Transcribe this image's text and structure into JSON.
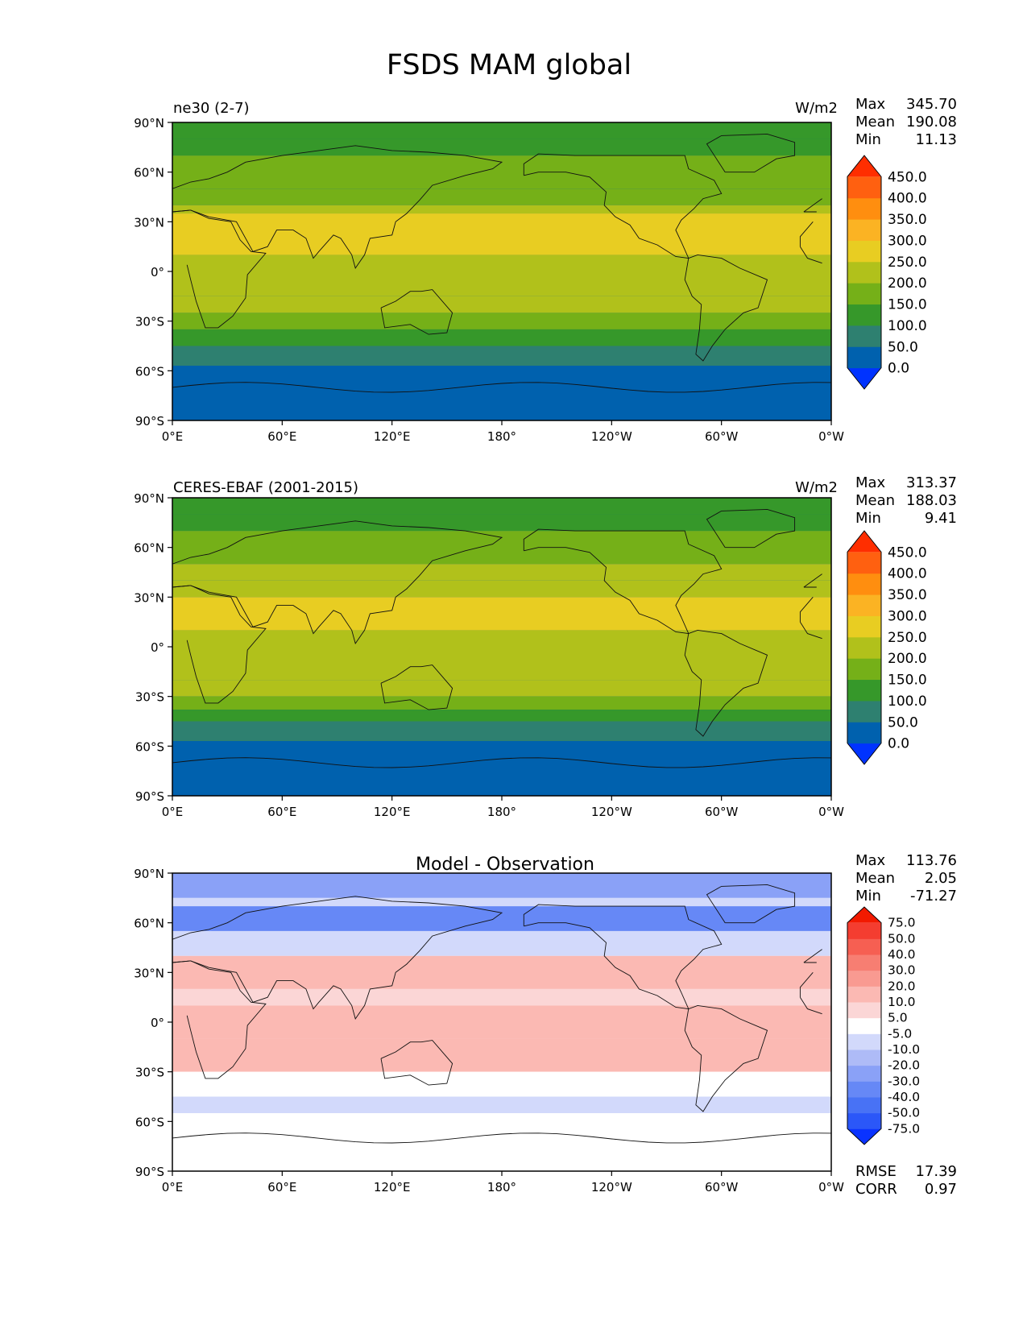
{
  "title": "FSDS MAM global",
  "x_ticks": [
    "0°E",
    "60°E",
    "120°E",
    "180°",
    "120°W",
    "60°W",
    "0°W"
  ],
  "y_ticks": [
    "90°N",
    "60°N",
    "30°N",
    "0°",
    "30°S",
    "60°S",
    "90°S"
  ],
  "stat_labels": {
    "max": "Max",
    "mean": "Mean",
    "min": "Min",
    "rmse": "RMSE",
    "corr": "CORR"
  },
  "chart_data": [
    {
      "type": "heatmap",
      "left_title": "ne30 (2-7)",
      "center_title": "",
      "units": "W/m2",
      "stats": {
        "max": "345.70",
        "mean": "190.08",
        "min": "11.13"
      },
      "xlim": [
        0,
        360
      ],
      "ylim": [
        -90,
        90
      ],
      "colorbar": {
        "levels": [
          "0.0",
          "50.0",
          "100.0",
          "150.0",
          "200.0",
          "250.0",
          "300.0",
          "350.0",
          "400.0",
          "450.0"
        ],
        "colors": [
          "#0033ff",
          "#0061ae",
          "#2e8070",
          "#36982a",
          "#75b018",
          "#b1c11b",
          "#e8cd22",
          "#fbb323",
          "#ff8e0f",
          "#ff6010",
          "#ff2e00"
        ]
      },
      "zonal_mean_bands": [
        {
          "lat_from": 90,
          "lat_to": 80,
          "value": 140
        },
        {
          "lat_from": 80,
          "lat_to": 70,
          "value": 110
        },
        {
          "lat_from": 70,
          "lat_to": 50,
          "value": 160
        },
        {
          "lat_from": 50,
          "lat_to": 40,
          "value": 190
        },
        {
          "lat_from": 40,
          "lat_to": 35,
          "value": 225
        },
        {
          "lat_from": 35,
          "lat_to": 10,
          "value": 265
        },
        {
          "lat_from": 10,
          "lat_to": 0,
          "value": 245
        },
        {
          "lat_from": 0,
          "lat_to": -15,
          "value": 240
        },
        {
          "lat_from": -15,
          "lat_to": -25,
          "value": 210
        },
        {
          "lat_from": -25,
          "lat_to": -35,
          "value": 175
        },
        {
          "lat_from": -35,
          "lat_to": -45,
          "value": 140
        },
        {
          "lat_from": -45,
          "lat_to": -57,
          "value": 90
        },
        {
          "lat_from": -57,
          "lat_to": -90,
          "value": 30
        }
      ]
    },
    {
      "type": "heatmap",
      "left_title": "CERES-EBAF (2001-2015)",
      "center_title": "",
      "units": "W/m2",
      "stats": {
        "max": "313.37",
        "mean": "188.03",
        "min": "9.41"
      },
      "xlim": [
        0,
        360
      ],
      "ylim": [
        -90,
        90
      ],
      "colorbar": {
        "levels": [
          "0.0",
          "50.0",
          "100.0",
          "150.0",
          "200.0",
          "250.0",
          "300.0",
          "350.0",
          "400.0",
          "450.0"
        ],
        "colors": [
          "#0033ff",
          "#0061ae",
          "#2e8070",
          "#36982a",
          "#75b018",
          "#b1c11b",
          "#e8cd22",
          "#fbb323",
          "#ff8e0f",
          "#ff6010",
          "#ff2e00"
        ]
      },
      "zonal_mean_bands": [
        {
          "lat_from": 90,
          "lat_to": 80,
          "value": 140
        },
        {
          "lat_from": 80,
          "lat_to": 70,
          "value": 120
        },
        {
          "lat_from": 70,
          "lat_to": 50,
          "value": 170
        },
        {
          "lat_from": 50,
          "lat_to": 40,
          "value": 200
        },
        {
          "lat_from": 40,
          "lat_to": 30,
          "value": 230
        },
        {
          "lat_from": 30,
          "lat_to": 10,
          "value": 260
        },
        {
          "lat_from": 10,
          "lat_to": 0,
          "value": 240
        },
        {
          "lat_from": 0,
          "lat_to": -20,
          "value": 230
        },
        {
          "lat_from": -20,
          "lat_to": -30,
          "value": 210
        },
        {
          "lat_from": -30,
          "lat_to": -38,
          "value": 175
        },
        {
          "lat_from": -38,
          "lat_to": -45,
          "value": 140
        },
        {
          "lat_from": -45,
          "lat_to": -57,
          "value": 90
        },
        {
          "lat_from": -57,
          "lat_to": -90,
          "value": 30
        }
      ]
    },
    {
      "type": "heatmap",
      "left_title": "",
      "center_title": "Model - Observation",
      "units": "",
      "stats": {
        "max": "113.76",
        "mean": "2.05",
        "min": "-71.27"
      },
      "rmse": "17.39",
      "corr": "0.97",
      "xlim": [
        0,
        360
      ],
      "ylim": [
        -90,
        90
      ],
      "colorbar": {
        "levels": [
          "-75.0",
          "-50.0",
          "-40.0",
          "-30.0",
          "-20.0",
          "-10.0",
          "-5.0",
          "5.0",
          "10.0",
          "20.0",
          "30.0",
          "40.0",
          "50.0",
          "75.0"
        ],
        "colors": [
          "#0a33ff",
          "#2b57f8",
          "#4872f5",
          "#6688f6",
          "#8aa1f7",
          "#aebbf7",
          "#d2d9fb",
          "#ffffff",
          "#fbd6d6",
          "#fbb9b3",
          "#f99a91",
          "#f77e72",
          "#f65f52",
          "#f43d30",
          "#f21a00"
        ]
      },
      "zonal_mean_bands": [
        {
          "lat_from": 90,
          "lat_to": 75,
          "value": -30
        },
        {
          "lat_from": 75,
          "lat_to": 70,
          "value": -6
        },
        {
          "lat_from": 70,
          "lat_to": 55,
          "value": -35
        },
        {
          "lat_from": 55,
          "lat_to": 40,
          "value": -8
        },
        {
          "lat_from": 40,
          "lat_to": 20,
          "value": 12
        },
        {
          "lat_from": 20,
          "lat_to": 10,
          "value": 6
        },
        {
          "lat_from": 10,
          "lat_to": -10,
          "value": 14
        },
        {
          "lat_from": -10,
          "lat_to": -30,
          "value": 12
        },
        {
          "lat_from": -30,
          "lat_to": -45,
          "value": 0
        },
        {
          "lat_from": -45,
          "lat_to": -55,
          "value": -6
        },
        {
          "lat_from": -55,
          "lat_to": -90,
          "value": 0
        }
      ]
    }
  ]
}
